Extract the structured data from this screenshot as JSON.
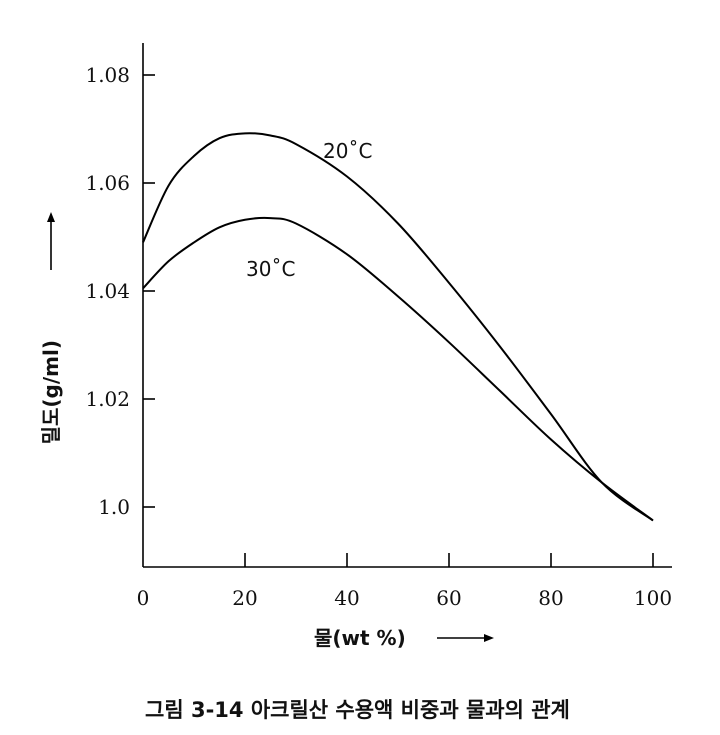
{
  "chart_data": {
    "type": "line",
    "xlabel": "물(wt %)",
    "ylabel": "밀도(g/ml)",
    "xlim": [
      0,
      100
    ],
    "ylim": [
      0.987,
      1.087
    ],
    "x_ticks": [
      0,
      20,
      40,
      60,
      80,
      100
    ],
    "x_tick_labels": [
      "0",
      "20",
      "40",
      "60",
      "80",
      "100"
    ],
    "y_ticks": [
      1.0,
      1.02,
      1.04,
      1.06,
      1.08
    ],
    "y_tick_labels": [
      "1.0",
      "1.02",
      "1.04",
      "1.06",
      "1.08"
    ],
    "grid": false,
    "legend": "none",
    "series": [
      {
        "name": "20˚C",
        "x": [
          0,
          5,
          10,
          15,
          20,
          25,
          30,
          40,
          50,
          60,
          70,
          80,
          90,
          100
        ],
        "y": [
          1.049,
          1.0595,
          1.065,
          1.0683,
          1.0692,
          1.0688,
          1.0672,
          1.0612,
          1.0525,
          1.0415,
          1.0297,
          1.0172,
          1.0045,
          0.9975
        ]
      },
      {
        "name": "30˚C",
        "x": [
          0,
          5,
          10,
          15,
          20,
          25,
          30,
          40,
          50,
          60,
          70,
          80,
          90,
          100
        ],
        "y": [
          1.0405,
          1.0455,
          1.049,
          1.0518,
          1.0532,
          1.0535,
          1.0525,
          1.0468,
          1.039,
          1.0305,
          1.0215,
          1.0125,
          1.0045,
          0.9975
        ]
      }
    ],
    "series_label_positions": [
      "upper-right of curve peak",
      "below curve peak"
    ]
  },
  "caption": "그림 3-14  아크릴산 수용액 비중과 물과의 관계",
  "colors": {
    "line": "#000000",
    "text": "#111111",
    "background": "#ffffff"
  }
}
